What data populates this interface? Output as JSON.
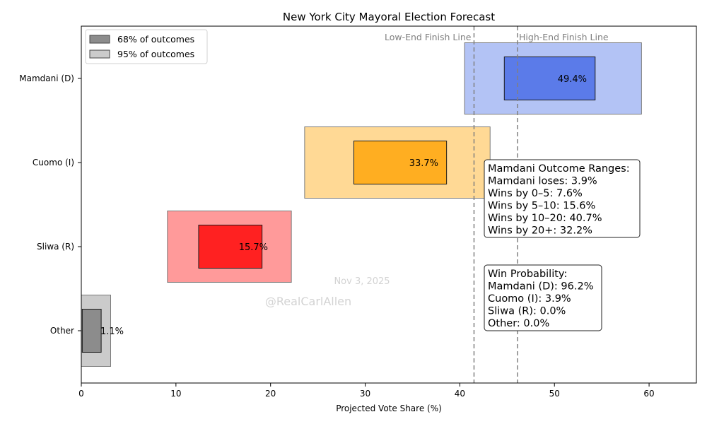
{
  "chart_data": {
    "type": "bar",
    "title": "New York City Mayoral Election Forecast",
    "xlabel": "Projected Vote Share (%)",
    "ylabel": "",
    "xlim": [
      0,
      65
    ],
    "xticks": [
      "0",
      "10",
      "20",
      "30",
      "40",
      "50",
      "60"
    ],
    "categories": [
      "Mamdani (D)",
      "Cuomo (I)",
      "Sliwa (R)",
      "Other"
    ],
    "series": [
      {
        "name": "95% of outcomes",
        "ranges": [
          [
            40.5,
            59.2
          ],
          [
            23.6,
            43.2
          ],
          [
            9.1,
            22.2
          ],
          [
            0,
            3.1
          ]
        ]
      },
      {
        "name": "68% of outcomes",
        "ranges": [
          [
            44.7,
            54.3
          ],
          [
            28.8,
            38.6
          ],
          [
            12.4,
            19.1
          ],
          [
            0.1,
            2.1
          ]
        ]
      }
    ],
    "values": [
      49.4,
      33.7,
      15.7,
      1.1
    ],
    "value_labels": [
      "49.4%",
      "33.7%",
      "15.7%",
      "1.1%"
    ],
    "colors": {
      "inner": [
        "#5b7be9",
        "#ffae21",
        "#ff2121",
        "#8c8c8c"
      ],
      "outer": [
        "#b3c3f5",
        "#ffd995",
        "#ff9a9a",
        "#cbcbcb"
      ],
      "legend_68": "#8c8c8c",
      "legend_95": "#cbcbcb",
      "finish_line": "#808080",
      "watermark": "#d3d3d3"
    },
    "finish_lines": [
      {
        "label": "Low-End Finish Line",
        "x": 41.5
      },
      {
        "label": "High-End Finish Line",
        "x": 46.1
      }
    ],
    "legend": {
      "placement": "top-left",
      "items": [
        {
          "label": "68% of outcomes"
        },
        {
          "label": "95% of outcomes"
        }
      ]
    },
    "annotations": {
      "outcome_ranges": [
        "Mamdani Outcome Ranges:",
        "Mamdani loses: 3.9%",
        "Wins by 0–5: 7.6%",
        "Wins by 5–10: 15.6%",
        "Wins by 10–20: 40.7%",
        "Wins by 20+: 32.2%"
      ],
      "win_probability": [
        "Win Probability:",
        "Mamdani (D): 96.2%",
        "Cuomo (I): 3.9%",
        "Sliwa (R): 0.0%",
        "Other: 0.0%"
      ],
      "watermark_date": "Nov 3, 2025",
      "watermark_handle": "@RealCarlAllen"
    },
    "grid": false
  }
}
